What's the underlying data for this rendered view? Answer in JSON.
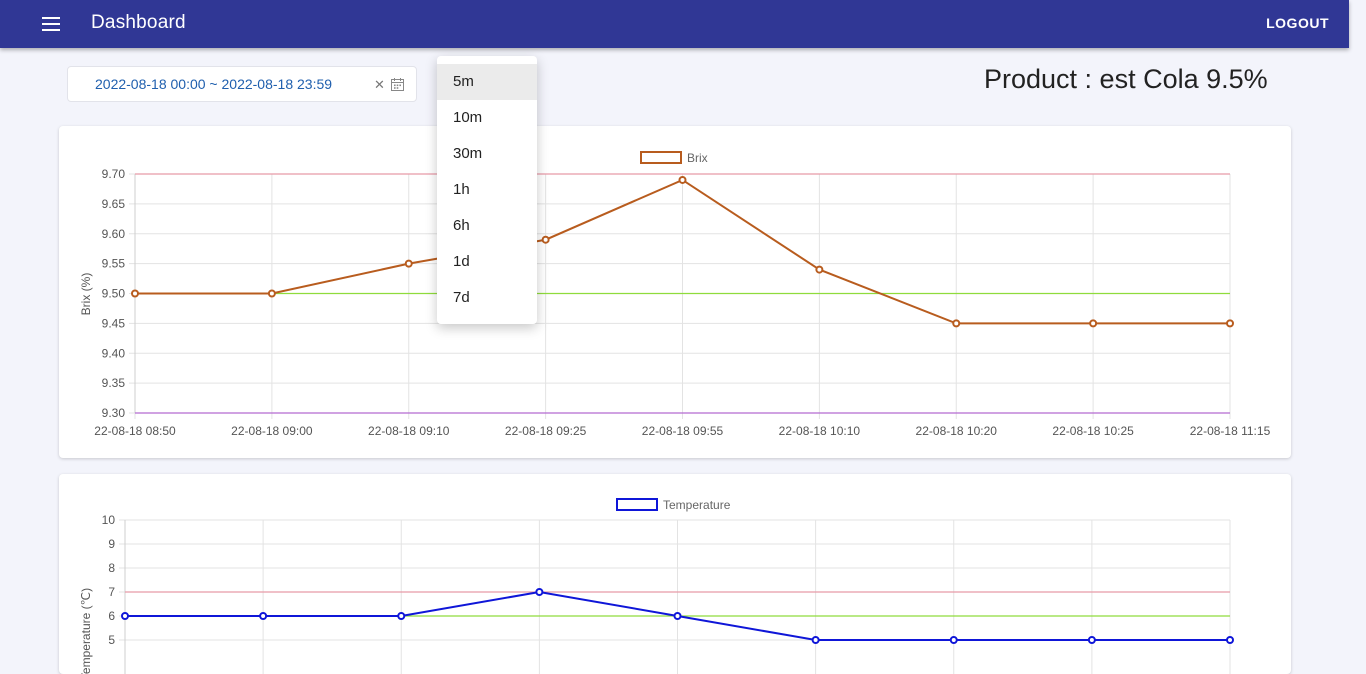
{
  "appbar": {
    "title": "Dashboard",
    "logout_label": "LOGOUT",
    "menu_icon": "hamburger-menu-icon",
    "color": "#303795"
  },
  "filters": {
    "date_range": "2022-08-18 00:00 ~ 2022-08-18 23:59",
    "clear_icon": "close-icon",
    "calendar_icon": "calendar-icon"
  },
  "product": {
    "label": "Product : est Cola 9.5%"
  },
  "interval_menu": {
    "options": [
      "5m",
      "10m",
      "30m",
      "1h",
      "6h",
      "1d",
      "7d"
    ],
    "selected": "5m"
  },
  "chart_data": [
    {
      "type": "line",
      "x": [
        "22-08-18 08:50",
        "22-08-18 09:00",
        "22-08-18 09:10",
        "22-08-18 09:25",
        "22-08-18 09:55",
        "22-08-18 10:10",
        "22-08-18 10:20",
        "22-08-18 10:25",
        "22-08-18 11:15"
      ],
      "series": [
        {
          "name": "Brix",
          "values": [
            9.5,
            9.5,
            9.55,
            9.59,
            9.69,
            9.54,
            9.45,
            9.45,
            9.45
          ],
          "color": "#b85c1e"
        }
      ],
      "reference_lines": [
        {
          "value": 9.7,
          "color": "#e89aa8"
        },
        {
          "value": 9.5,
          "color": "#8fdc3c"
        },
        {
          "value": 9.3,
          "color": "#b36bd1"
        }
      ],
      "ylabel": "Brix (%)",
      "ylim": [
        9.3,
        9.7
      ],
      "yticks": [
        9.7,
        9.65,
        9.6,
        9.55,
        9.5,
        9.45,
        9.4,
        9.35,
        9.3
      ],
      "legend": "top-center",
      "grid": true
    },
    {
      "type": "line",
      "x": [
        "",
        "",
        "",
        "",
        "",
        "",
        "",
        "",
        ""
      ],
      "series": [
        {
          "name": "Temperature",
          "values": [
            6,
            6,
            6,
            7,
            6,
            5,
            5,
            5,
            5
          ],
          "color": "#0f16d8"
        }
      ],
      "reference_lines": [
        {
          "value": 7,
          "color": "#e89aa8"
        },
        {
          "value": 6,
          "color": "#8fdc3c"
        }
      ],
      "ylabel": "Temperature (℃)",
      "ylim": [
        0,
        10
      ],
      "yticks": [
        10,
        9,
        8,
        7,
        6,
        5
      ],
      "legend": "top-center",
      "grid": true
    }
  ]
}
